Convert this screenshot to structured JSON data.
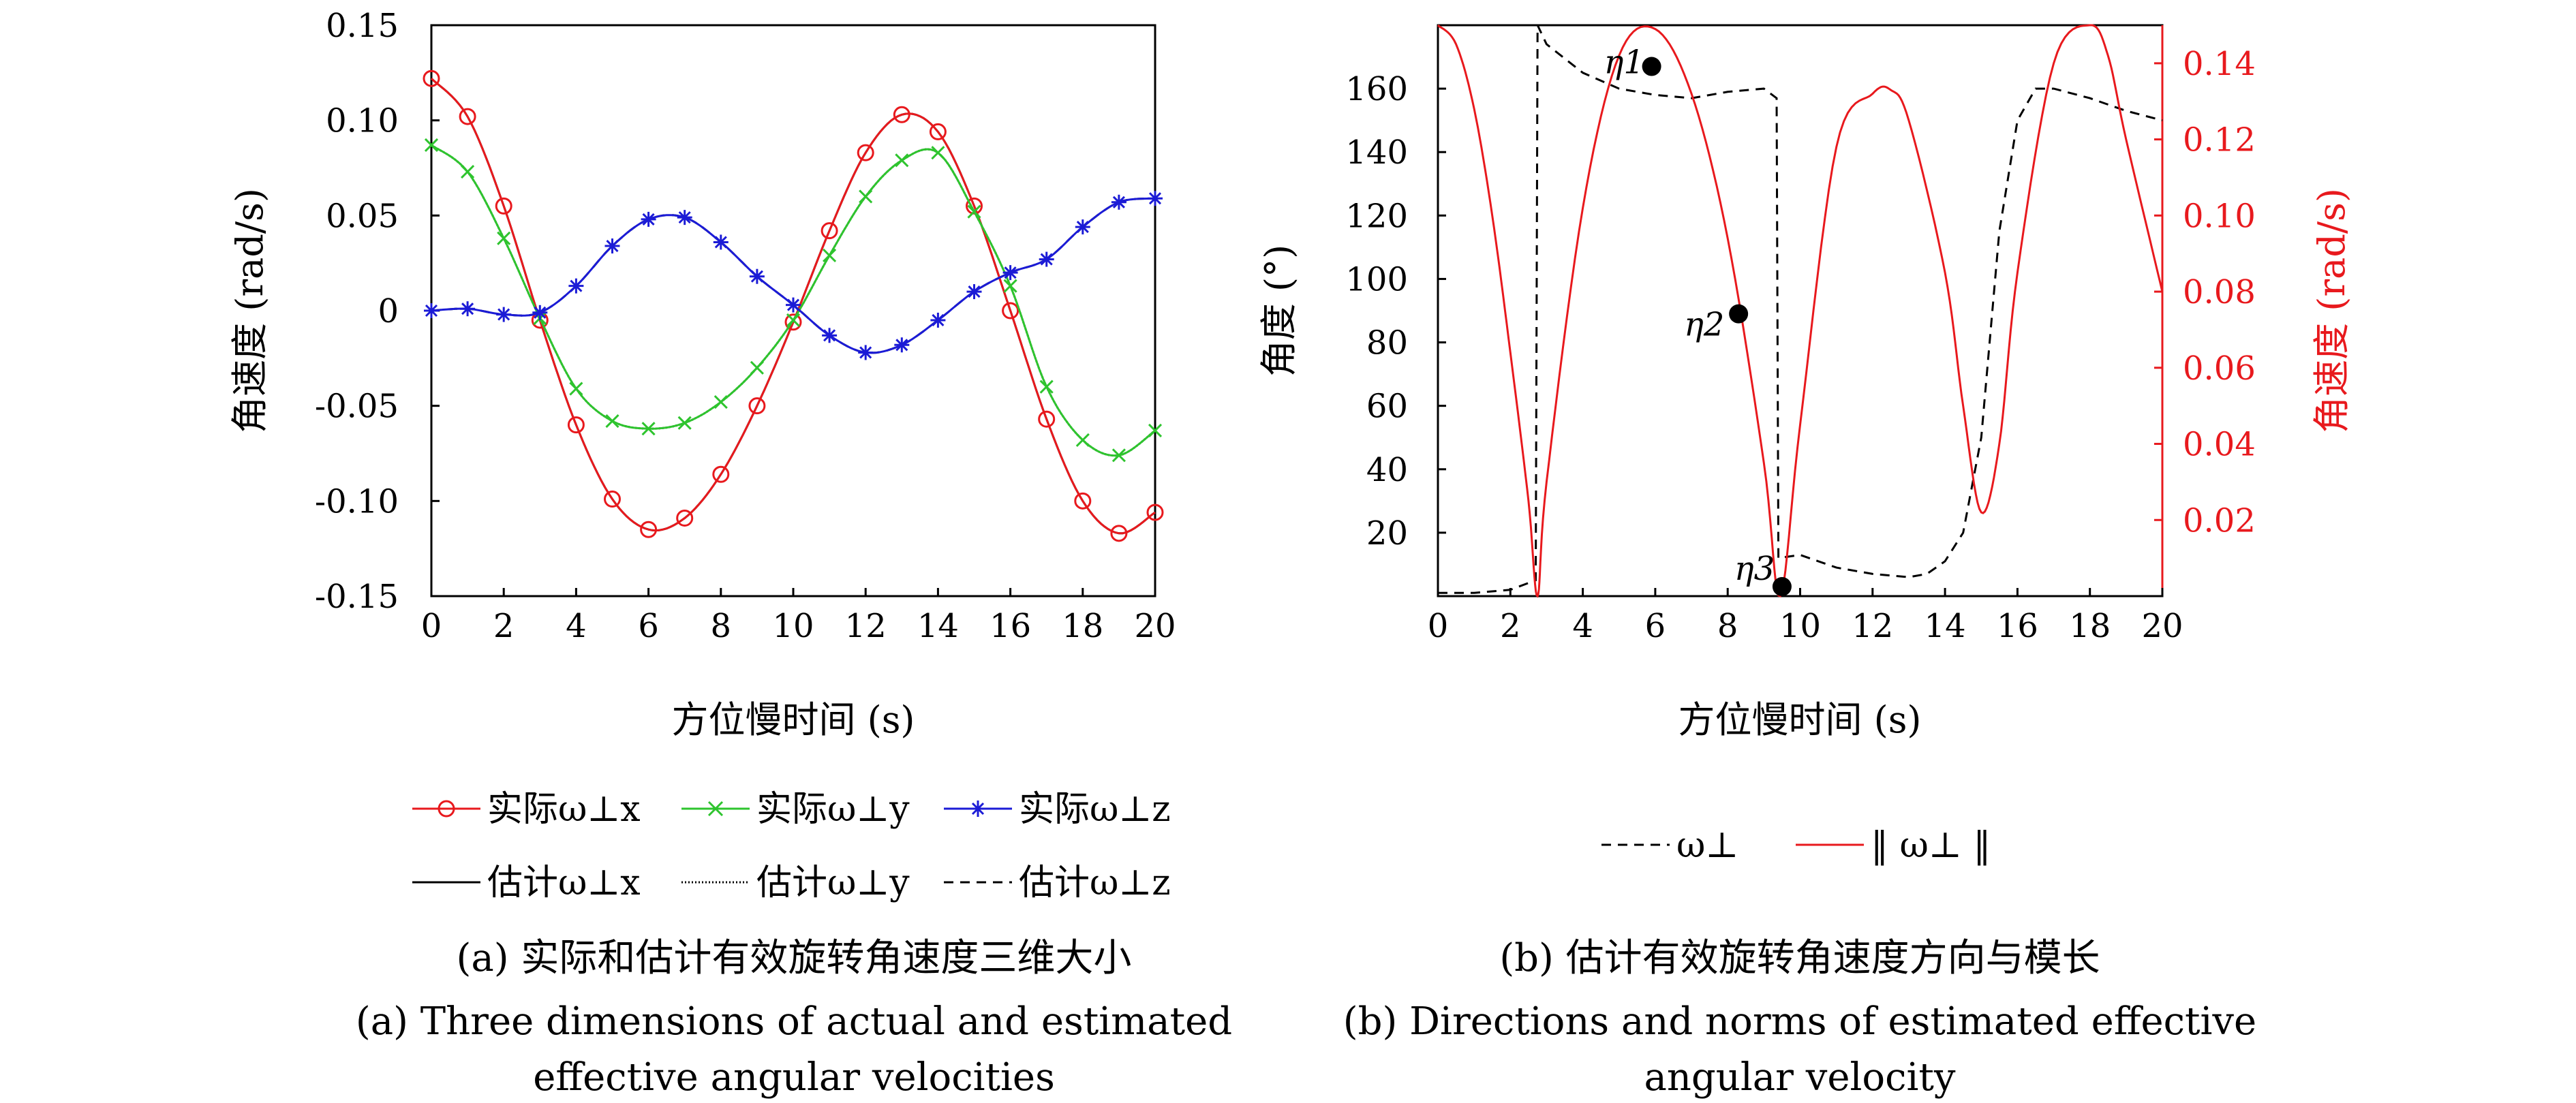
{
  "charts": [
    {
      "id": "a",
      "xlabel": "方位慢时间 (s)",
      "ylabel": "角速度 (rad/s)",
      "xticks": [
        "0",
        "2",
        "4",
        "6",
        "8",
        "10",
        "12",
        "14",
        "16",
        "18",
        "20"
      ],
      "yticks": [
        "0.15",
        "0.10",
        "0.05",
        "0",
        "-0.05",
        "-0.10",
        "-0.15"
      ],
      "caption_cn": "(a) 实际和估计有效旋转角速度三维大小",
      "caption_en_1": "(a) Three dimensions of actual and estimated",
      "caption_en_2": "effective angular velocities",
      "legend": {
        "actual_x": "实际ω⊥x",
        "actual_y": "实际ω⊥y",
        "actual_z": "实际ω⊥z",
        "est_x": "估计ω⊥x",
        "est_y": "估计ω⊥y",
        "est_z": "估计ω⊥z"
      }
    },
    {
      "id": "b",
      "xlabel": "方位慢时间 (s)",
      "ylabel_left": "角度 (°)",
      "ylabel_right": "角速度 (rad/s)",
      "xticks": [
        "0",
        "2",
        "4",
        "6",
        "8",
        "10",
        "12",
        "14",
        "16",
        "18",
        "20"
      ],
      "yticks_left": [
        "160",
        "140",
        "120",
        "100",
        "80",
        "60",
        "40",
        "20"
      ],
      "yticks_right": [
        "0.14",
        "0.12",
        "0.10",
        "0.08",
        "0.06",
        "0.04",
        "0.02"
      ],
      "caption_cn": "(b) 估计有效旋转角速度方向与模长",
      "caption_en_1": "(b) Directions and norms of estimated effective",
      "caption_en_2": "angular velocity",
      "legend": {
        "direction": "ω⊥",
        "norm": "‖ ω⊥ ‖"
      },
      "annotations": [
        "η1",
        "η2",
        "η3"
      ]
    }
  ],
  "colors": {
    "x": "#e8191d",
    "y": "#2ec42e",
    "z": "#1b1bd6",
    "black": "#000000",
    "norm": "#e8191d"
  },
  "chart_data": [
    {
      "type": "line",
      "xlim": [
        0,
        20
      ],
      "ylim": [
        -0.15,
        0.15
      ],
      "series": [
        {
          "name": "实际ω⊥x",
          "x": [
            0,
            1,
            2,
            3,
            4,
            5,
            6,
            7,
            8,
            9,
            10,
            11,
            12,
            13,
            14,
            15,
            16,
            17,
            18,
            19,
            20
          ],
          "y": [
            0.122,
            0.102,
            0.055,
            -0.005,
            -0.06,
            -0.099,
            -0.115,
            -0.109,
            -0.086,
            -0.05,
            -0.006,
            0.042,
            0.083,
            0.103,
            0.094,
            0.055,
            0.0,
            -0.057,
            -0.1,
            -0.117,
            -0.106
          ]
        },
        {
          "name": "实际ω⊥y",
          "x": [
            0,
            1,
            2,
            3,
            4,
            5,
            6,
            7,
            8,
            9,
            10,
            11,
            12,
            13,
            14,
            15,
            16,
            17,
            18,
            19,
            20
          ],
          "y": [
            0.087,
            0.073,
            0.038,
            -0.004,
            -0.041,
            -0.058,
            -0.062,
            -0.059,
            -0.048,
            -0.03,
            -0.005,
            0.029,
            0.06,
            0.079,
            0.083,
            0.052,
            0.013,
            -0.04,
            -0.068,
            -0.076,
            -0.063
          ]
        },
        {
          "name": "实际ω⊥z",
          "x": [
            0,
            1,
            2,
            3,
            4,
            5,
            6,
            7,
            8,
            9,
            10,
            11,
            12,
            13,
            14,
            15,
            16,
            17,
            18,
            19,
            20
          ],
          "y": [
            0.0,
            0.001,
            -0.002,
            -0.001,
            0.013,
            0.034,
            0.048,
            0.049,
            0.036,
            0.018,
            0.003,
            -0.013,
            -0.022,
            -0.018,
            -0.005,
            0.01,
            0.02,
            0.027,
            0.044,
            0.057,
            0.059
          ]
        },
        {
          "name": "估计ω⊥x",
          "x": [
            0,
            1,
            2,
            3,
            4,
            5,
            6,
            7,
            8,
            9,
            10,
            11,
            12,
            13,
            14,
            15,
            16,
            17,
            18,
            19,
            20
          ],
          "y": [
            0.122,
            0.102,
            0.055,
            -0.005,
            -0.06,
            -0.099,
            -0.115,
            -0.109,
            -0.086,
            -0.05,
            -0.006,
            0.042,
            0.083,
            0.103,
            0.094,
            0.055,
            0.0,
            -0.057,
            -0.1,
            -0.117,
            -0.106
          ]
        },
        {
          "name": "估计ω⊥y",
          "x": [
            0,
            1,
            2,
            3,
            4,
            5,
            6,
            7,
            8,
            9,
            10,
            11,
            12,
            13,
            14,
            15,
            16,
            17,
            18,
            19,
            20
          ],
          "y": [
            0.087,
            0.073,
            0.038,
            -0.004,
            -0.041,
            -0.058,
            -0.062,
            -0.059,
            -0.048,
            -0.03,
            -0.005,
            0.029,
            0.06,
            0.079,
            0.083,
            0.052,
            0.013,
            -0.04,
            -0.068,
            -0.076,
            -0.063
          ]
        },
        {
          "name": "估计ω⊥z",
          "x": [
            0,
            1,
            2,
            3,
            4,
            5,
            6,
            7,
            8,
            9,
            10,
            11,
            12,
            13,
            14,
            15,
            16,
            17,
            18,
            19,
            20
          ],
          "y": [
            0.0,
            0.001,
            -0.002,
            -0.001,
            0.013,
            0.034,
            0.048,
            0.049,
            0.036,
            0.018,
            0.003,
            -0.013,
            -0.022,
            -0.018,
            -0.005,
            0.01,
            0.02,
            0.027,
            0.044,
            0.057,
            0.059
          ]
        }
      ]
    },
    {
      "type": "line",
      "xlim": [
        0,
        20
      ],
      "ylim_left": [
        0,
        180
      ],
      "ylim_right": [
        0,
        0.15
      ],
      "series": [
        {
          "name": "ω⊥",
          "axis": "left",
          "x": [
            0,
            1,
            2,
            2.7,
            2.75,
            3,
            4,
            5,
            6,
            7,
            8,
            9,
            9.35,
            9.4,
            10,
            11,
            12,
            13,
            13.5,
            14,
            14.5,
            15,
            15.5,
            16,
            16.5,
            17,
            18,
            19,
            20
          ],
          "y": [
            1,
            1,
            2,
            5,
            180,
            174,
            165,
            160,
            158,
            157,
            159,
            160,
            157,
            12,
            13,
            9,
            7,
            6,
            7,
            11,
            20,
            50,
            115,
            150,
            160,
            160,
            157,
            153,
            150
          ]
        },
        {
          "name": "‖ ω⊥ ‖",
          "axis": "right",
          "x": [
            0,
            0.5,
            1,
            1.5,
            2,
            2.5,
            2.75,
            3,
            4,
            5,
            6,
            7,
            8,
            9,
            9.45,
            10,
            11,
            12,
            12.5,
            13,
            14,
            14.5,
            15,
            15.5,
            16,
            17,
            18,
            18.5,
            19,
            20
          ],
          "y": [
            0.15,
            0.145,
            0.128,
            0.1,
            0.064,
            0.025,
            0.0,
            0.03,
            0.102,
            0.142,
            0.149,
            0.132,
            0.094,
            0.035,
            0.0,
            0.045,
            0.118,
            0.132,
            0.133,
            0.125,
            0.085,
            0.05,
            0.022,
            0.04,
            0.085,
            0.14,
            0.15,
            0.142,
            0.12,
            0.08
          ]
        }
      ],
      "markers": [
        {
          "label": "η1",
          "x": 5.9,
          "y": 167
        },
        {
          "label": "η2",
          "x": 8.3,
          "y": 89
        },
        {
          "label": "η3",
          "x": 9.5,
          "y": 3
        }
      ]
    }
  ]
}
